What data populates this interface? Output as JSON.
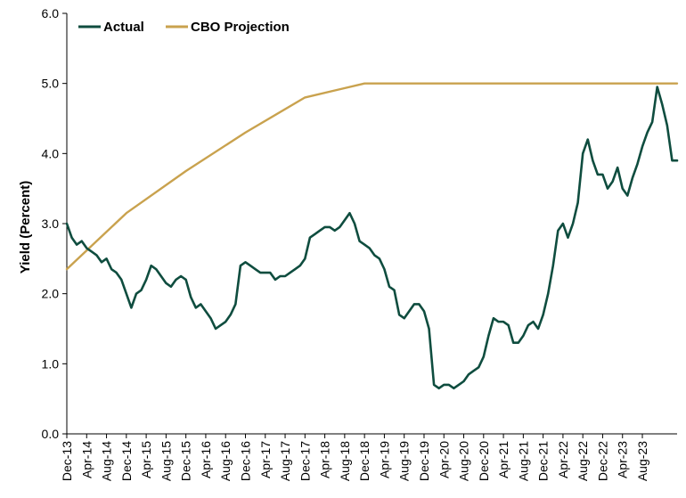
{
  "colors": {
    "actual": "#0f4d3f",
    "cbo": "#c9a24e",
    "axis": "#000000"
  },
  "chart_data": {
    "type": "line",
    "title": "",
    "xlabel": "",
    "ylabel": "Yield (Percent)",
    "ylim": [
      0,
      6
    ],
    "y_ticks": [
      "0.0",
      "1.0",
      "2.0",
      "3.0",
      "4.0",
      "5.0",
      "6.0"
    ],
    "x_tick_labels": [
      "Dec-13",
      "Apr-14",
      "Aug-14",
      "Dec-14",
      "Apr-15",
      "Aug-15",
      "Dec-15",
      "Apr-16",
      "Aug-16",
      "Dec-16",
      "Apr-17",
      "Aug-17",
      "Dec-17",
      "Apr-18",
      "Aug-18",
      "Dec-18",
      "Apr-19",
      "Aug-19",
      "Dec-19",
      "Apr-20",
      "Aug-20",
      "Dec-20",
      "Apr-21",
      "Aug-21",
      "Dec-21",
      "Apr-22",
      "Aug-22",
      "Dec-22",
      "Apr-23",
      "Aug-23"
    ],
    "grid": false,
    "legend": "top-left",
    "x_unit": "months since Dec-13",
    "series": [
      {
        "name": "Actual",
        "points": [
          [
            0,
            3.0
          ],
          [
            1,
            2.8
          ],
          [
            2,
            2.7
          ],
          [
            3,
            2.75
          ],
          [
            4,
            2.65
          ],
          [
            5,
            2.6
          ],
          [
            6,
            2.55
          ],
          [
            7,
            2.45
          ],
          [
            8,
            2.5
          ],
          [
            9,
            2.35
          ],
          [
            10,
            2.3
          ],
          [
            11,
            2.2
          ],
          [
            12,
            2.0
          ],
          [
            13,
            1.8
          ],
          [
            14,
            2.0
          ],
          [
            15,
            2.05
          ],
          [
            16,
            2.2
          ],
          [
            17,
            2.4
          ],
          [
            18,
            2.35
          ],
          [
            19,
            2.25
          ],
          [
            20,
            2.15
          ],
          [
            21,
            2.1
          ],
          [
            22,
            2.2
          ],
          [
            23,
            2.25
          ],
          [
            24,
            2.2
          ],
          [
            25,
            1.95
          ],
          [
            26,
            1.8
          ],
          [
            27,
            1.85
          ],
          [
            28,
            1.75
          ],
          [
            29,
            1.65
          ],
          [
            30,
            1.5
          ],
          [
            31,
            1.55
          ],
          [
            32,
            1.6
          ],
          [
            33,
            1.7
          ],
          [
            34,
            1.85
          ],
          [
            35,
            2.4
          ],
          [
            36,
            2.45
          ],
          [
            37,
            2.4
          ],
          [
            38,
            2.35
          ],
          [
            39,
            2.3
          ],
          [
            40,
            2.3
          ],
          [
            41,
            2.3
          ],
          [
            42,
            2.2
          ],
          [
            43,
            2.25
          ],
          [
            44,
            2.25
          ],
          [
            45,
            2.3
          ],
          [
            46,
            2.35
          ],
          [
            47,
            2.4
          ],
          [
            48,
            2.5
          ],
          [
            49,
            2.8
          ],
          [
            50,
            2.85
          ],
          [
            51,
            2.9
          ],
          [
            52,
            2.95
          ],
          [
            53,
            2.95
          ],
          [
            54,
            2.9
          ],
          [
            55,
            2.95
          ],
          [
            56,
            3.05
          ],
          [
            57,
            3.15
          ],
          [
            58,
            3.0
          ],
          [
            59,
            2.75
          ],
          [
            60,
            2.7
          ],
          [
            61,
            2.65
          ],
          [
            62,
            2.55
          ],
          [
            63,
            2.5
          ],
          [
            64,
            2.35
          ],
          [
            65,
            2.1
          ],
          [
            66,
            2.05
          ],
          [
            67,
            1.7
          ],
          [
            68,
            1.65
          ],
          [
            69,
            1.75
          ],
          [
            70,
            1.85
          ],
          [
            71,
            1.85
          ],
          [
            72,
            1.75
          ],
          [
            73,
            1.5
          ],
          [
            74,
            0.7
          ],
          [
            75,
            0.65
          ],
          [
            76,
            0.7
          ],
          [
            77,
            0.7
          ],
          [
            78,
            0.65
          ],
          [
            79,
            0.7
          ],
          [
            80,
            0.75
          ],
          [
            81,
            0.85
          ],
          [
            82,
            0.9
          ],
          [
            83,
            0.95
          ],
          [
            84,
            1.1
          ],
          [
            85,
            1.4
          ],
          [
            86,
            1.65
          ],
          [
            87,
            1.6
          ],
          [
            88,
            1.6
          ],
          [
            89,
            1.55
          ],
          [
            90,
            1.3
          ],
          [
            91,
            1.3
          ],
          [
            92,
            1.4
          ],
          [
            93,
            1.55
          ],
          [
            94,
            1.6
          ],
          [
            95,
            1.5
          ],
          [
            96,
            1.7
          ],
          [
            97,
            2.0
          ],
          [
            98,
            2.4
          ],
          [
            99,
            2.9
          ],
          [
            100,
            3.0
          ],
          [
            101,
            2.8
          ],
          [
            102,
            3.0
          ],
          [
            103,
            3.3
          ],
          [
            104,
            4.0
          ],
          [
            105,
            4.2
          ],
          [
            106,
            3.9
          ],
          [
            107,
            3.7
          ],
          [
            108,
            3.7
          ],
          [
            109,
            3.5
          ],
          [
            110,
            3.6
          ],
          [
            111,
            3.8
          ],
          [
            112,
            3.5
          ],
          [
            113,
            3.4
          ],
          [
            114,
            3.65
          ],
          [
            115,
            3.85
          ],
          [
            116,
            4.1
          ],
          [
            117,
            4.3
          ],
          [
            118,
            4.45
          ],
          [
            119,
            4.95
          ],
          [
            120,
            4.7
          ],
          [
            121,
            4.4
          ],
          [
            122,
            3.9
          ],
          [
            123,
            3.9
          ]
        ]
      },
      {
        "name": "CBO Projection",
        "points": [
          [
            0,
            2.35
          ],
          [
            12,
            3.15
          ],
          [
            24,
            3.75
          ],
          [
            36,
            4.3
          ],
          [
            48,
            4.8
          ],
          [
            60,
            5.0
          ],
          [
            123,
            5.0
          ]
        ]
      }
    ]
  }
}
